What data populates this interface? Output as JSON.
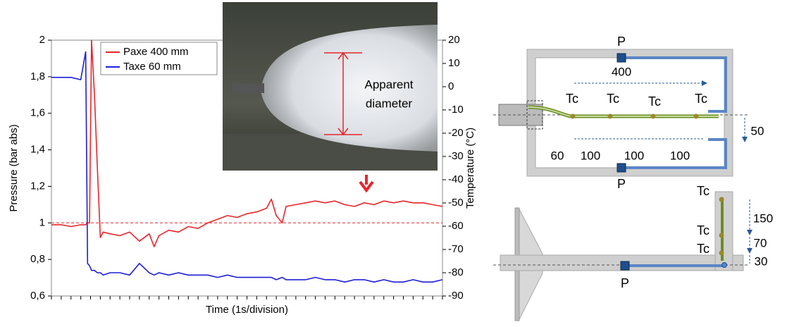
{
  "chart_data": {
    "type": "line",
    "xlabel": "Time (1s/division)",
    "ylabel": "Pressure (bar abs)",
    "y2label": "Temperature (°C)",
    "x": [
      0,
      1,
      2,
      3,
      3.5,
      3.7,
      3.9,
      4.1,
      4.4,
      4.7,
      5.0,
      5.3,
      6,
      7,
      8,
      9,
      10,
      10.5,
      11,
      12,
      13,
      14,
      15,
      16,
      17,
      18,
      19,
      20,
      21,
      22,
      22.5,
      23,
      23.6,
      24,
      25,
      26,
      27,
      28,
      29,
      30,
      31,
      32,
      33,
      34,
      35,
      36,
      37,
      38,
      39,
      40
    ],
    "xlim": [
      0,
      40
    ],
    "xticks": [
      0,
      1,
      2,
      3,
      4,
      5,
      6,
      7,
      8,
      9,
      10,
      11,
      12,
      13,
      14,
      15,
      16,
      17,
      18,
      19,
      20,
      21,
      22,
      23,
      24,
      25,
      26,
      27,
      28,
      29,
      30,
      31,
      32,
      33,
      34,
      35,
      36,
      37,
      38,
      39,
      40
    ],
    "ylim": [
      0.6,
      2
    ],
    "yticks": [
      {
        "value": 0.6,
        "label": "0,6"
      },
      {
        "value": 0.8,
        "label": "0,8"
      },
      1,
      {
        "value": 1.2,
        "label": "1,2"
      },
      {
        "value": 1.4,
        "label": "1,4"
      },
      {
        "value": 1.6,
        "label": "1,6"
      },
      {
        "value": 1.8,
        "label": "1,8"
      },
      2
    ],
    "y2lim": [
      -90,
      20
    ],
    "y2ticks": [
      -90,
      -80,
      -70,
      -60,
      -50,
      -40,
      -30,
      -20,
      -10,
      0,
      10,
      20
    ],
    "reference_line": 1,
    "series": [
      {
        "name": "Paxe 400 mm",
        "color": "#e8262b",
        "values": [
          0.99,
          0.99,
          0.98,
          0.99,
          0.99,
          1.0,
          1.0,
          2.0,
          1.7,
          1.3,
          0.92,
          0.95,
          0.94,
          0.93,
          0.95,
          0.9,
          0.94,
          0.87,
          0.93,
          0.96,
          0.95,
          0.98,
          0.97,
          1.0,
          1.02,
          1.04,
          1.03,
          1.05,
          1.06,
          1.08,
          1.13,
          1.04,
          1.0,
          1.09,
          1.1,
          1.11,
          1.12,
          1.11,
          1.12,
          1.1,
          1.09,
          1.11,
          1.1,
          1.12,
          1.11,
          1.12,
          1.11,
          1.11,
          1.1,
          1.09
        ]
      },
      {
        "name": "Taxe 60 mm",
        "color": "#1f1fd6",
        "axis": "y2",
        "values": [
          4,
          4,
          4,
          3,
          15,
          -76,
          -77,
          -79,
          -79,
          -80,
          -80,
          -81,
          -80,
          -80,
          -81,
          -76,
          -80,
          -81,
          -80,
          -81,
          -80,
          -81,
          -81,
          -81,
          -82,
          -81,
          -82,
          -82,
          -82,
          -82,
          -82,
          -83,
          -82,
          -83,
          -83,
          -83,
          -82,
          -83,
          -83,
          -84,
          -83,
          -83,
          -84,
          -83,
          -84,
          -84,
          -83,
          -84,
          -84,
          -83
        ]
      }
    ]
  },
  "photo": {
    "label_line1": "Apparent",
    "label_line2": "diameter"
  },
  "diagram_top": {
    "pressure_top": "P",
    "pressure_bottom": "P",
    "length": "400",
    "offset": "50",
    "thermocouples": [
      "Tc",
      "Tc",
      "Tc",
      "Tc"
    ],
    "spacings": [
      "60",
      "100",
      "100",
      "100"
    ]
  },
  "diagram_bottom": {
    "pressure": "P",
    "thermocouples": [
      "Tc",
      "Tc",
      "Tc"
    ],
    "spacings": [
      "150",
      "70",
      "30"
    ]
  }
}
